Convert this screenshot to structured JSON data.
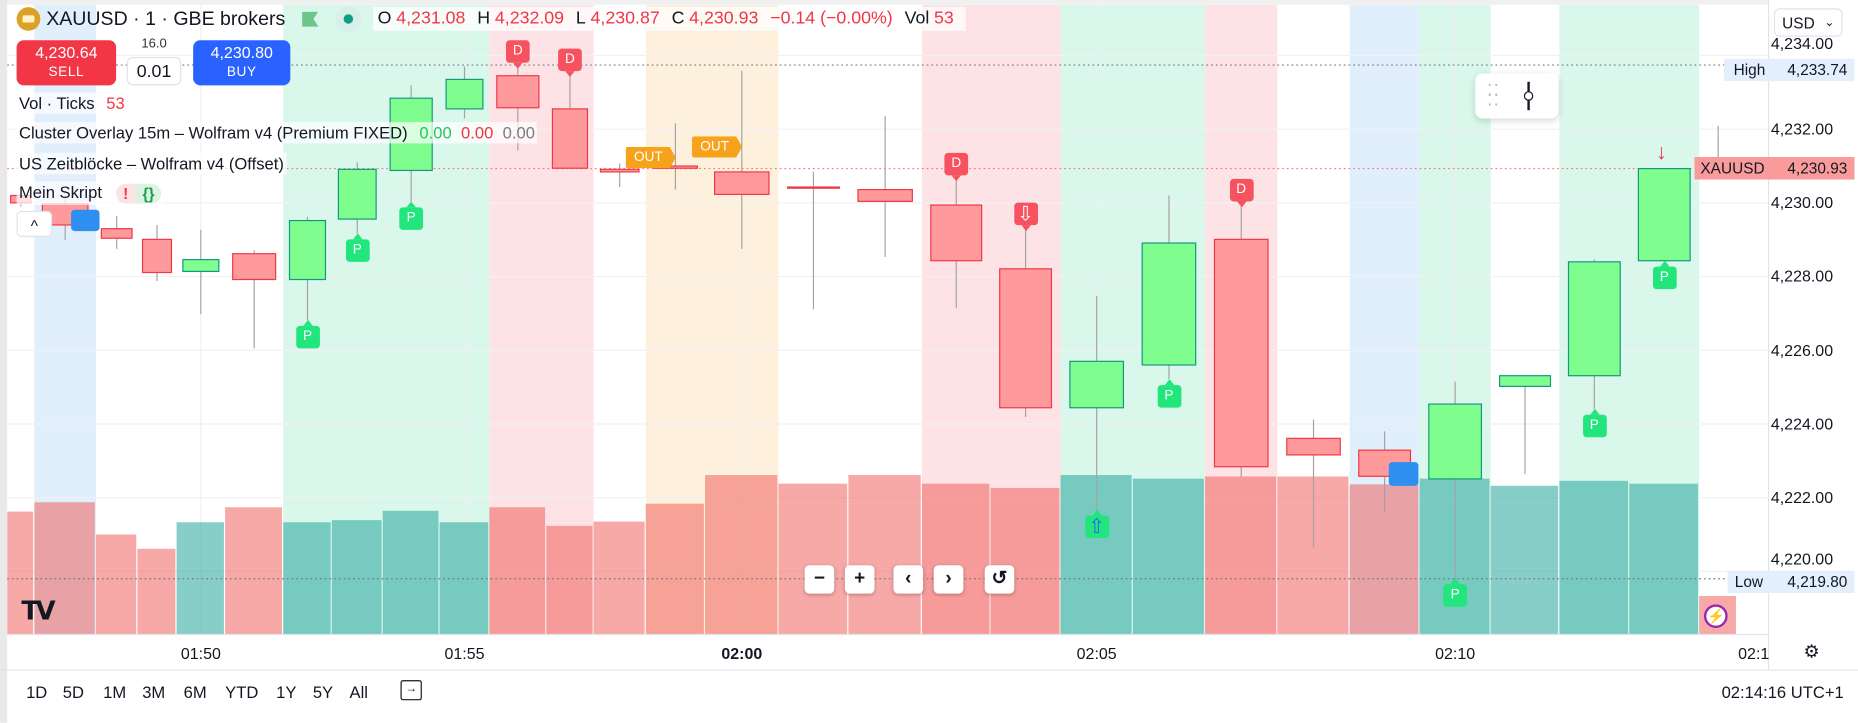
{
  "header": {
    "symbol": "XAUUSD · 1 · GBE brokers",
    "ohlc": {
      "o_label": "O",
      "o": "4,231.08",
      "h_label": "H",
      "h": "4,232.09",
      "l_label": "L",
      "l": "4,230.87",
      "c_label": "C",
      "c": "4,230.93",
      "change": "−0.14 (−0.00%)",
      "vol_label": "Vol",
      "vol": "53"
    }
  },
  "trade": {
    "sell_price": "4,230.64",
    "sell_label": "SELL",
    "spread": "16.0",
    "quantity": "0.01",
    "buy_price": "4,230.80",
    "buy_label": "BUY"
  },
  "legend": {
    "vol_ticks": "Vol · Ticks",
    "vol_ticks_value": "53",
    "cluster": "Cluster Overlay 15m – Wolfram v4 (Premium FIXED)",
    "cluster_v1": "0.00",
    "cluster_v2": "0.00",
    "cluster_v3": "0.00",
    "zeitbloecke": "US Zeitblöcke – Wolfram v4 (Offset)",
    "script": "Mein Skript",
    "script_error": "!",
    "script_source": "{}",
    "collapse": "^"
  },
  "price_axis": {
    "currency": "USD",
    "ticks": [
      4234,
      4232,
      4230,
      4228,
      4226,
      4224,
      4222,
      4220
    ],
    "high_label": "High",
    "high_value": "4,233.74",
    "low_label": "Low",
    "low_value": "4,219.80",
    "symbol_label": "XAUUSD",
    "last_value": "4,230.93"
  },
  "time_axis": {
    "labels": [
      {
        "time": "01:50",
        "bold": false
      },
      {
        "time": "01:55",
        "bold": false
      },
      {
        "time": "02:00",
        "bold": true
      },
      {
        "time": "02:05",
        "bold": false
      },
      {
        "time": "02:10",
        "bold": false
      },
      {
        "time": "02:1",
        "bold": false
      }
    ]
  },
  "nav_buttons": {
    "zoom_out": "−",
    "zoom_in": "+",
    "left": "‹",
    "right": "›",
    "reset": "↺"
  },
  "bottom": {
    "ranges": [
      "1D",
      "5D",
      "1M",
      "3M",
      "6M",
      "YTD",
      "1Y",
      "5Y",
      "All"
    ],
    "clock": "02:14:16 UTC+1"
  },
  "colors": {
    "up_fill": "#80fd8f",
    "up_border": "#12997f",
    "down_fill": "#fe9a9b",
    "down_border": "#f23645",
    "wick": "#a3a3a3",
    "vol_up": "rgba(38,166,154,0.55)",
    "vol_down": "rgba(239,83,80,0.5)"
  },
  "zones": [
    {
      "from": "01:47",
      "to": "01:47",
      "color": "#e1eefb"
    },
    {
      "from": "01:52",
      "to": "01:55",
      "color": "#d9f7ea"
    },
    {
      "from": "01:56",
      "to": "01:57",
      "color": "#fde3e5"
    },
    {
      "from": "01:59",
      "to": "02:00",
      "color": "#fdf0dd"
    },
    {
      "from": "02:03",
      "to": "02:04",
      "color": "#fde3e5"
    },
    {
      "from": "02:05",
      "to": "02:06",
      "color": "#d9f7ea"
    },
    {
      "from": "02:07",
      "to": "02:07",
      "color": "#fde3e5"
    },
    {
      "from": "02:09",
      "to": "02:09",
      "color": "#e1eefb"
    },
    {
      "from": "02:10",
      "to": "02:10",
      "color": "#d9f7ea"
    },
    {
      "from": "02:12",
      "to": "02:13",
      "color": "#d9f7ea"
    }
  ],
  "chart_data": {
    "type": "candlestick",
    "ylim": [
      4219.2,
      4235.3
    ],
    "candles": [
      {
        "t": "01:46",
        "o": 4230.2,
        "h": 4230.3,
        "l": 4229.9,
        "c": 4230.0,
        "v": 171
      },
      {
        "t": "01:47",
        "o": 4229.97,
        "h": 4230.2,
        "l": 4229.0,
        "c": 4229.4,
        "v": 184
      },
      {
        "t": "01:48",
        "o": 4229.3,
        "h": 4229.65,
        "l": 4228.75,
        "c": 4229.04,
        "v": 139
      },
      {
        "t": "01:49",
        "o": 4229.01,
        "h": 4229.4,
        "l": 4227.88,
        "c": 4228.11,
        "v": 119
      },
      {
        "t": "01:50",
        "o": 4228.14,
        "h": 4229.27,
        "l": 4226.98,
        "c": 4228.46,
        "v": 156
      },
      {
        "t": "01:51",
        "o": 4228.62,
        "h": 4228.72,
        "l": 4226.05,
        "c": 4227.92,
        "v": 177
      },
      {
        "t": "01:52",
        "o": 4227.92,
        "h": 4229.62,
        "l": 4226.82,
        "c": 4229.52,
        "v": 156
      },
      {
        "t": "01:53",
        "o": 4229.56,
        "h": 4231.1,
        "l": 4229.17,
        "c": 4230.91,
        "v": 159
      },
      {
        "t": "01:54",
        "o": 4230.88,
        "h": 4233.19,
        "l": 4230.04,
        "c": 4232.84,
        "v": 172
      },
      {
        "t": "01:55",
        "o": 4232.55,
        "h": 4233.7,
        "l": 4232.29,
        "c": 4233.35,
        "v": 156
      },
      {
        "t": "01:56",
        "o": 4233.45,
        "h": 4233.74,
        "l": 4231.42,
        "c": 4232.58,
        "v": 177
      },
      {
        "t": "01:57",
        "o": 4232.55,
        "h": 4233.51,
        "l": 4230.94,
        "c": 4230.94,
        "v": 151
      },
      {
        "t": "01:58",
        "o": 4230.91,
        "h": 4231.07,
        "l": 4230.43,
        "c": 4230.84,
        "v": 157
      },
      {
        "t": "01:59",
        "o": 4231.0,
        "h": 4232.16,
        "l": 4230.36,
        "c": 4230.94,
        "v": 182
      },
      {
        "t": "02:00",
        "o": 4230.84,
        "h": 4233.58,
        "l": 4228.75,
        "c": 4230.23,
        "v": 222
      },
      {
        "t": "02:01",
        "o": 4230.43,
        "h": 4230.84,
        "l": 4227.11,
        "c": 4230.4,
        "v": 210
      },
      {
        "t": "02:02",
        "o": 4230.36,
        "h": 4232.35,
        "l": 4228.53,
        "c": 4230.04,
        "v": 222
      },
      {
        "t": "02:03",
        "o": 4229.94,
        "h": 4230.68,
        "l": 4227.14,
        "c": 4228.43,
        "v": 210
      },
      {
        "t": "02:04",
        "o": 4228.21,
        "h": 4229.33,
        "l": 4224.19,
        "c": 4224.44,
        "v": 204
      },
      {
        "t": "02:05",
        "o": 4224.44,
        "h": 4227.47,
        "l": 4221.68,
        "c": 4225.7,
        "v": 222
      },
      {
        "t": "02:06",
        "o": 4225.6,
        "h": 4230.2,
        "l": 4225.22,
        "c": 4228.91,
        "v": 217
      },
      {
        "t": "02:07",
        "o": 4229.01,
        "h": 4229.97,
        "l": 4222.55,
        "c": 4222.84,
        "v": 220
      },
      {
        "t": "02:08",
        "o": 4223.61,
        "h": 4224.12,
        "l": 4220.65,
        "c": 4223.16,
        "v": 220
      },
      {
        "t": "02:09",
        "o": 4223.29,
        "h": 4223.8,
        "l": 4221.61,
        "c": 4222.58,
        "v": 209
      },
      {
        "t": "02:10",
        "o": 4222.51,
        "h": 4225.15,
        "l": 4219.8,
        "c": 4224.54,
        "v": 217
      },
      {
        "t": "02:11",
        "o": 4225.02,
        "h": 4225.31,
        "l": 4222.64,
        "c": 4225.31,
        "v": 207
      },
      {
        "t": "02:12",
        "o": 4225.31,
        "h": 4228.46,
        "l": 4224.41,
        "c": 4228.4,
        "v": 214
      },
      {
        "t": "02:13",
        "o": 4228.43,
        "h": 4230.93,
        "l": 4228.43,
        "c": 4230.93,
        "v": 210
      },
      {
        "t": "02:14",
        "o": 4231.08,
        "h": 4232.09,
        "l": 4230.87,
        "c": 4230.93,
        "v": 53
      }
    ],
    "markers": [
      {
        "t": "01:56",
        "pos": "above",
        "text": "D"
      },
      {
        "t": "01:57",
        "pos": "above",
        "text": "D"
      },
      {
        "t": "02:03",
        "pos": "above",
        "text": "D"
      },
      {
        "t": "02:07",
        "pos": "above",
        "text": "D"
      },
      {
        "t": "02:04",
        "pos": "above",
        "text": "⇩"
      },
      {
        "t": "01:52",
        "pos": "below",
        "text": "P"
      },
      {
        "t": "01:53",
        "pos": "below",
        "text": "P"
      },
      {
        "t": "01:54",
        "pos": "below",
        "text": "P"
      },
      {
        "t": "02:06",
        "pos": "below",
        "text": "P"
      },
      {
        "t": "02:10",
        "pos": "below",
        "text": "P"
      },
      {
        "t": "02:12",
        "pos": "below",
        "text": "P"
      },
      {
        "t": "02:13",
        "pos": "below",
        "text": "P"
      },
      {
        "t": "02:05",
        "pos": "below",
        "text": "⇧"
      }
    ],
    "out_labels": [
      "OUT",
      "OUT"
    ]
  }
}
